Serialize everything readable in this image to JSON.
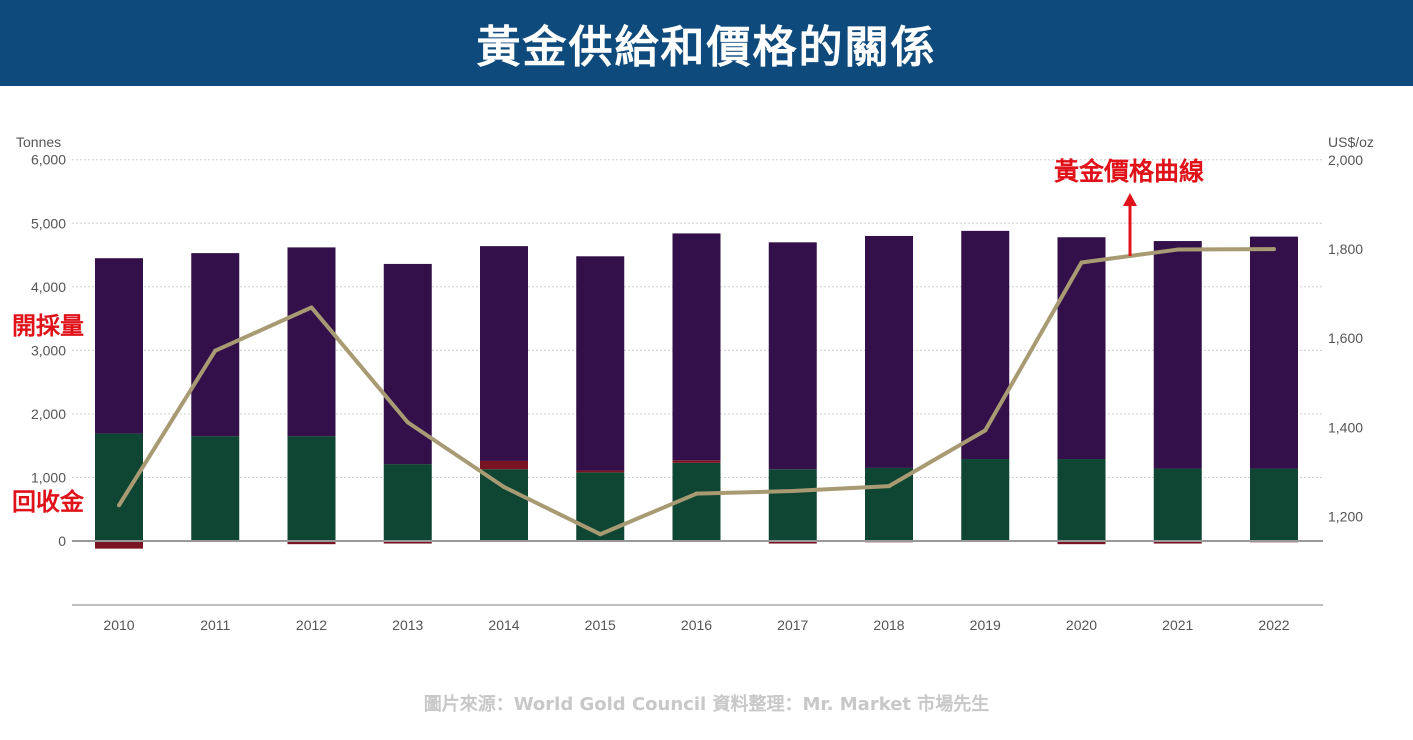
{
  "header": {
    "title": "黃金供給和價格的關係"
  },
  "source_note": "圖片來源：World Gold Council 資料整理：Mr. Market 市場先生",
  "annotations": {
    "mining": "開採量",
    "recycling": "回收金",
    "price_curve": "黃金價格曲線"
  },
  "colors": {
    "header_bg": "#0e4a7b",
    "mine": "#33104a",
    "recycle": "#0f4633",
    "hedging": "#7a1322",
    "price_line": "#a89a72",
    "annotation": "#e0131b"
  },
  "chart_data": {
    "type": "bar",
    "stacked": true,
    "categories": [
      "2010",
      "2011",
      "2012",
      "2013",
      "2014",
      "2015",
      "2016",
      "2017",
      "2018",
      "2019",
      "2020",
      "2021",
      "2022"
    ],
    "series": [
      {
        "values": [
          1690,
          1650,
          1650,
          1210,
          1130,
          1080,
          1230,
          1130,
          1150,
          1290,
          1290,
          1140,
          1140
        ]
      },
      {
        "values": [
          2760,
          2880,
          2970,
          3150,
          3380,
          3370,
          3570,
          3570,
          3650,
          3590,
          3490,
          3580,
          3650
        ]
      },
      {
        "values": [
          -120,
          0,
          -50,
          -40,
          130,
          30,
          40,
          -40,
          -20,
          0,
          -50,
          -40,
          -20
        ]
      },
      {
        "axis": "right",
        "values": [
          1225,
          1572,
          1669,
          1411,
          1266,
          1160,
          1251,
          1257,
          1268,
          1393,
          1770,
          1799,
          1800
        ]
      }
    ],
    "left_axis": {
      "unit": "Tonnes",
      "ticks": [
        "6,000",
        "5,000",
        "4,000",
        "3,000",
        "2,000",
        "1,000",
        "0"
      ],
      "ylim": [
        -1000,
        6000
      ]
    },
    "right_axis": {
      "unit": "US$/oz",
      "ticks": [
        "2,000",
        "1,800",
        "1,600",
        "1,400",
        "1,200"
      ],
      "ylim": [
        1146,
        2000
      ]
    },
    "grid": "horizontal dotted"
  }
}
